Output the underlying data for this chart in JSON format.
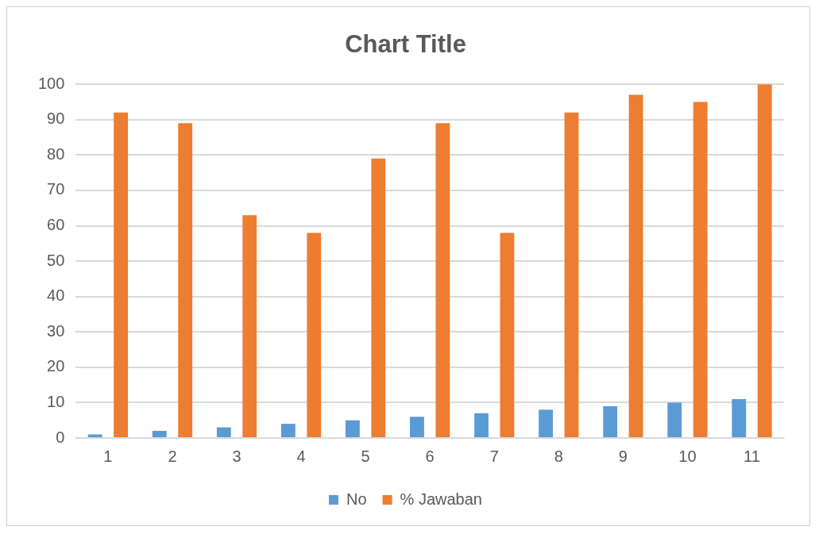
{
  "chart_data": {
    "type": "bar",
    "title": "Chart Title",
    "categories": [
      "1",
      "2",
      "3",
      "4",
      "5",
      "6",
      "7",
      "8",
      "9",
      "10",
      "11"
    ],
    "series": [
      {
        "name": "No",
        "color": "#5b9bd5",
        "values": [
          1,
          2,
          3,
          4,
          5,
          6,
          7,
          8,
          9,
          10,
          11
        ]
      },
      {
        "name": "% Jawaban",
        "color": "#ed7d31",
        "values": [
          92,
          89,
          63,
          58,
          79,
          89,
          58,
          92,
          97,
          95,
          100
        ]
      }
    ],
    "ylim": [
      0,
      100
    ],
    "yticks": [
      0,
      10,
      20,
      30,
      40,
      50,
      60,
      70,
      80,
      90,
      100
    ],
    "grid": "y",
    "legend": "bottom"
  }
}
